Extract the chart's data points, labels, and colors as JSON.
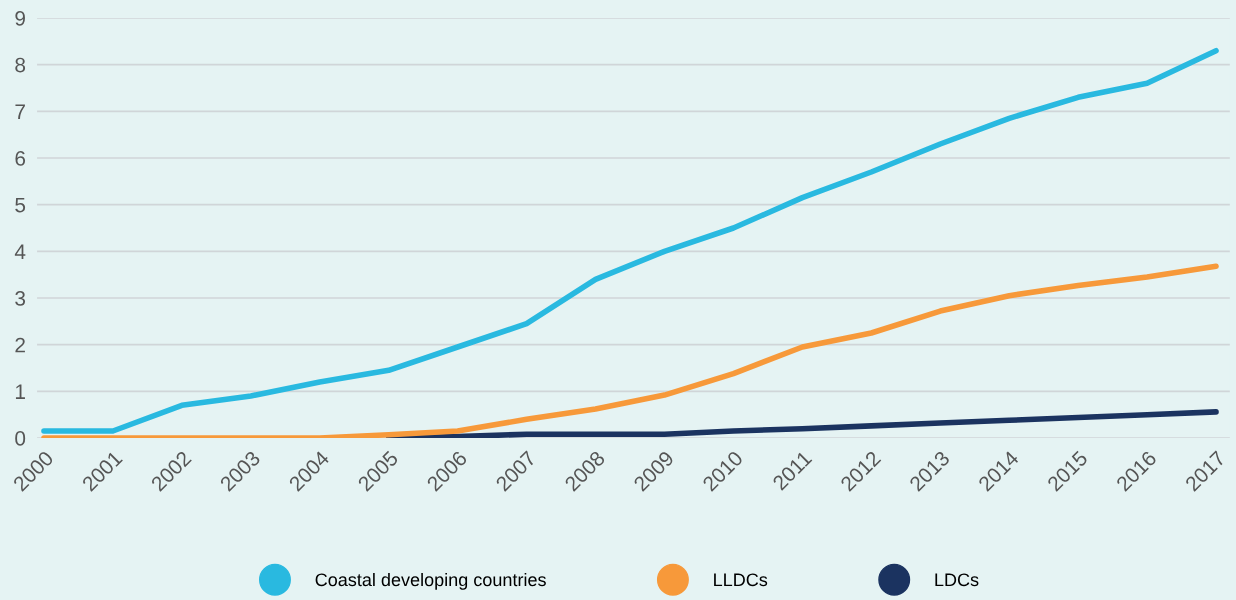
{
  "chart_data": {
    "type": "line",
    "x": [
      2000,
      2001,
      2002,
      2003,
      2004,
      2005,
      2006,
      2007,
      2008,
      2009,
      2010,
      2011,
      2012,
      2013,
      2014,
      2015,
      2016,
      2017
    ],
    "series": [
      {
        "name": "Coastal developing countries",
        "color": "#29b9e0",
        "values": [
          0.15,
          0.15,
          0.7,
          0.9,
          1.2,
          1.45,
          1.95,
          2.45,
          3.4,
          4.0,
          4.5,
          5.15,
          5.7,
          6.3,
          6.85,
          7.3,
          7.6,
          8.3
        ]
      },
      {
        "name": "LLDCs",
        "color": "#f7993a",
        "values": [
          0,
          0,
          0,
          0,
          0,
          0.07,
          0.15,
          0.4,
          0.62,
          0.92,
          1.38,
          1.95,
          2.25,
          2.72,
          3.05,
          3.27,
          3.45,
          3.68
        ]
      },
      {
        "name": "LDCs",
        "color": "#1b3360",
        "values": [
          null,
          null,
          null,
          null,
          null,
          0,
          0.03,
          0.08,
          0.08,
          0.08,
          0.15,
          0.2,
          0.26,
          0.32,
          0.38,
          0.44,
          0.5,
          0.56
        ]
      }
    ],
    "xlim": [
      1999.9,
      2017.2
    ],
    "xticks": [
      2000,
      2001,
      2002,
      2003,
      2004,
      2005,
      2006,
      2007,
      2008,
      2009,
      2010,
      2011,
      2012,
      2013,
      2014,
      2015,
      2016,
      2017
    ],
    "ylim": [
      0,
      9
    ],
    "yticks": [
      0,
      1,
      2,
      3,
      4,
      5,
      6,
      7,
      8,
      9
    ],
    "grid": "y",
    "legend": "bottom",
    "marker": "none",
    "line_style": "solid"
  }
}
